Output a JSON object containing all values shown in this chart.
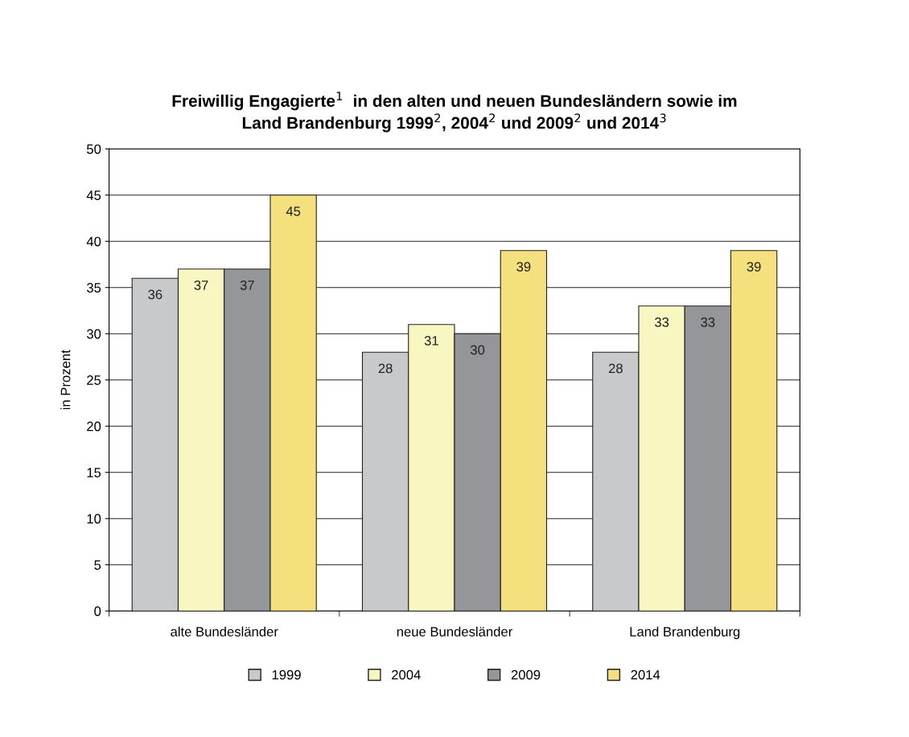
{
  "chart_data": {
    "type": "bar",
    "title": "Freiwillig Engagierte$^{1}$  in den alten und neuen Bundesländern sowie im\nLand Brandenburg 1999$^{2}$, 2004$^{2}$ und 2009$^{2}$ und 2014$^{3}$",
    "ylabel": "in Prozent",
    "categories": [
      "alte Bundesländer",
      "neue Bundesländer",
      "Land Brandenburg"
    ],
    "series": [
      {
        "name": "1999",
        "color": "#c8c9cb",
        "values": [
          36,
          28,
          28
        ]
      },
      {
        "name": "2004",
        "color": "#f8f6c1",
        "values": [
          37,
          31,
          33
        ]
      },
      {
        "name": "2009",
        "color": "#959699",
        "values": [
          37,
          30,
          33
        ]
      },
      {
        "name": "2014",
        "color": "#f4e07c",
        "values": [
          45,
          39,
          39
        ]
      }
    ],
    "ylim": [
      0,
      50
    ],
    "yticks": [
      0,
      5,
      10,
      15,
      20,
      25,
      30,
      35,
      40,
      45,
      50
    ],
    "grid": "y",
    "legend": "bottom",
    "data_labels": true
  }
}
